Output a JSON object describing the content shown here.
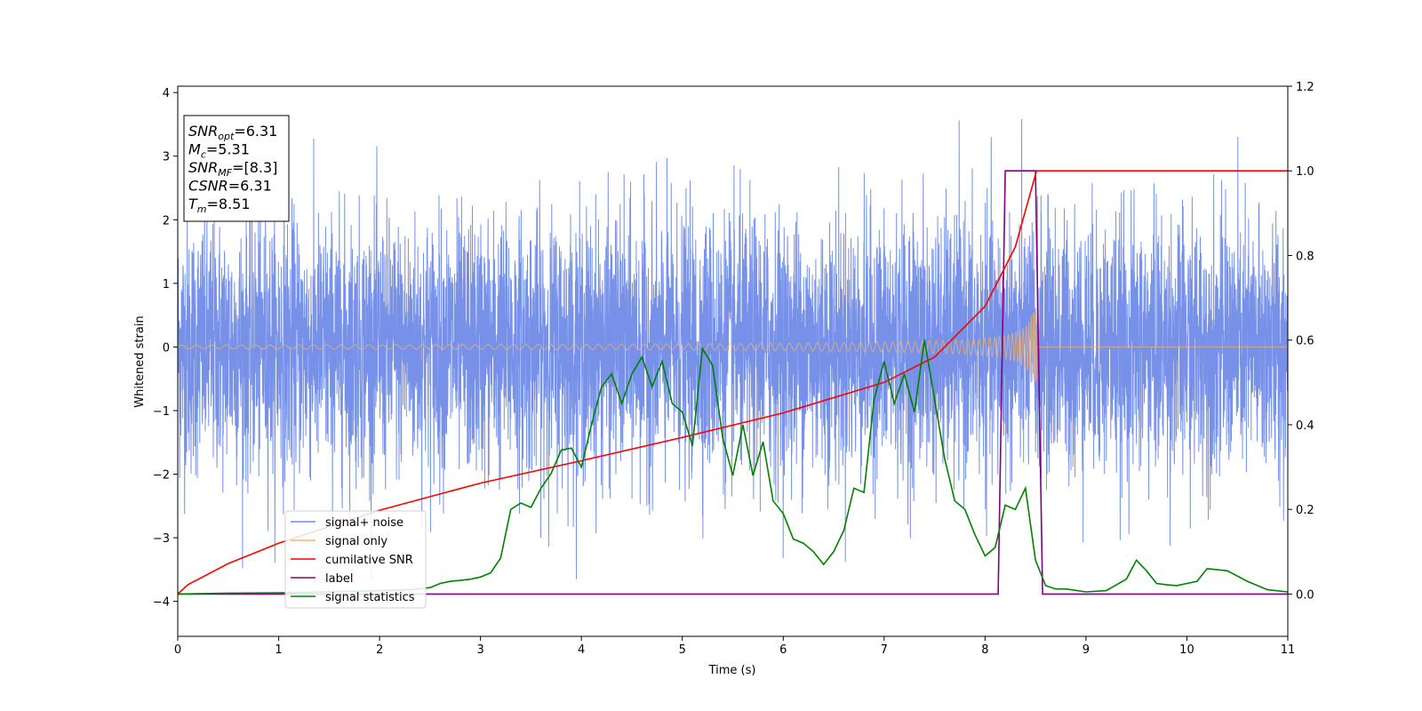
{
  "chart_data": {
    "type": "line",
    "xlabel": "Time (s)",
    "ylabel": "Whitened strain",
    "xlim": [
      0,
      11
    ],
    "ylim_left": [
      -4.55,
      4.1
    ],
    "ylim_right": [
      -0.1,
      1.2
    ],
    "x_ticks": [
      "0",
      "1",
      "2",
      "3",
      "4",
      "5",
      "6",
      "7",
      "8",
      "9",
      "10",
      "11"
    ],
    "y_left_ticks": [
      "4",
      "3",
      "2",
      "1",
      "0",
      "−1",
      "−2",
      "−3",
      "−4"
    ],
    "y_right_ticks": [
      "1.2",
      "1.0",
      "0.8",
      "0.6",
      "0.4",
      "0.2",
      "0.0"
    ],
    "grid": false,
    "legend_position": "lower-left",
    "annotation": [
      {
        "base": "SNR",
        "sub": "opt",
        "value": "=6.31"
      },
      {
        "base": "M",
        "sub": "c",
        "value": "=5.31"
      },
      {
        "base": "SNR",
        "sub": "MF",
        "value": "=[8.3]"
      },
      {
        "base": "CSNR",
        "sub": "",
        "value": "=6.31"
      },
      {
        "base": "T",
        "sub": "m",
        "value": "=8.51"
      }
    ],
    "series": [
      {
        "name": "signal+ noise",
        "axis": "left",
        "color": "#6f8be6",
        "noise_amplitude_typical": 1.0,
        "noise_extremes": [
          -3.65,
          3.7
        ]
      },
      {
        "name": "signal only",
        "axis": "left",
        "color": "#f4b370",
        "chirp": {
          "start_time": 0,
          "merger_time": 8.51,
          "start_amplitude": 0.03,
          "peak_amplitude": 0.55
        }
      },
      {
        "name": "cumilative SNR",
        "axis": "right",
        "color": "#ff0000",
        "x": [
          0,
          0.1,
          0.5,
          1,
          2,
          3,
          4,
          5,
          6,
          7,
          7.5,
          8,
          8.3,
          8.51,
          11
        ],
        "y": [
          0.0,
          0.022,
          0.072,
          0.12,
          0.198,
          0.262,
          0.315,
          0.37,
          0.428,
          0.5,
          0.56,
          0.68,
          0.82,
          1.0,
          1.0
        ]
      },
      {
        "name": "label",
        "axis": "right",
        "color": "#800080",
        "x": [
          0,
          8.13,
          8.2,
          8.5,
          8.57,
          11
        ],
        "y": [
          0.0,
          0.0,
          1.0,
          1.0,
          0.0,
          0.0
        ]
      },
      {
        "name": "signal statistics",
        "axis": "right",
        "color": "#008000",
        "x": [
          0,
          0.5,
          1,
          1.5,
          2,
          2.3,
          2.5,
          2.6,
          2.7,
          2.8,
          2.9,
          3.0,
          3.1,
          3.2,
          3.3,
          3.4,
          3.5,
          3.6,
          3.7,
          3.8,
          3.9,
          4.0,
          4.1,
          4.2,
          4.3,
          4.4,
          4.5,
          4.6,
          4.7,
          4.8,
          4.9,
          5.0,
          5.1,
          5.2,
          5.3,
          5.4,
          5.5,
          5.6,
          5.7,
          5.8,
          5.9,
          6.0,
          6.1,
          6.2,
          6.3,
          6.4,
          6.5,
          6.6,
          6.7,
          6.8,
          6.9,
          7.0,
          7.1,
          7.2,
          7.3,
          7.4,
          7.5,
          7.6,
          7.7,
          7.8,
          7.9,
          8.0,
          8.1,
          8.2,
          8.3,
          8.4,
          8.5,
          8.6,
          8.7,
          8.8,
          9.0,
          9.2,
          9.4,
          9.5,
          9.6,
          9.7,
          9.8,
          9.9,
          10.0,
          10.1,
          10.2,
          10.4,
          10.6,
          10.8,
          11.0
        ],
        "y": [
          0.0,
          0.002,
          0.003,
          0.005,
          0.008,
          0.01,
          0.015,
          0.025,
          0.03,
          0.032,
          0.035,
          0.04,
          0.05,
          0.085,
          0.2,
          0.215,
          0.205,
          0.25,
          0.285,
          0.34,
          0.345,
          0.3,
          0.4,
          0.49,
          0.52,
          0.45,
          0.52,
          0.56,
          0.49,
          0.55,
          0.45,
          0.43,
          0.35,
          0.58,
          0.54,
          0.37,
          0.28,
          0.4,
          0.28,
          0.36,
          0.22,
          0.19,
          0.13,
          0.12,
          0.1,
          0.07,
          0.1,
          0.15,
          0.25,
          0.24,
          0.46,
          0.55,
          0.45,
          0.52,
          0.43,
          0.6,
          0.46,
          0.32,
          0.22,
          0.2,
          0.14,
          0.09,
          0.11,
          0.21,
          0.2,
          0.25,
          0.08,
          0.02,
          0.012,
          0.012,
          0.005,
          0.008,
          0.035,
          0.08,
          0.055,
          0.025,
          0.022,
          0.02,
          0.025,
          0.03,
          0.06,
          0.055,
          0.03,
          0.01,
          0.005
        ]
      }
    ]
  }
}
